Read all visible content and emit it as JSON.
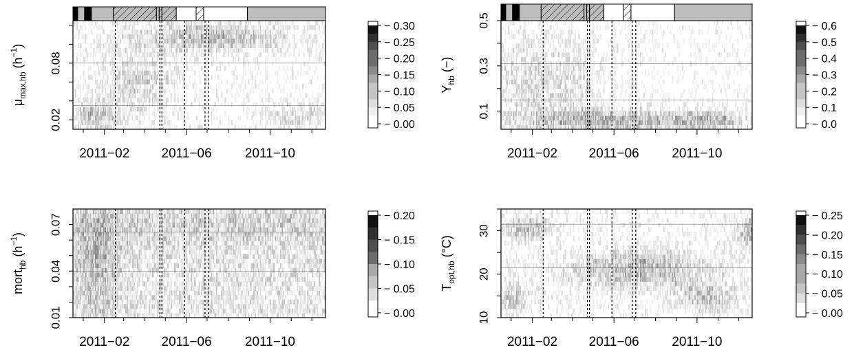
{
  "legend_levels": [
    "#ffffff",
    "#efefef",
    "#dddddd",
    "#c4c4c4",
    "#a8a8a8",
    "#8a8a8a",
    "#6c6c6c",
    "#4e4e4e",
    "#303030",
    "#111111"
  ],
  "chart_data": [
    {
      "type": "heatmap",
      "title": "",
      "xlabel": "",
      "ylabel_main": "μ",
      "ylabel_sub": "max,hb",
      "ylabel_unit": "(h",
      "ylabel_sup": "−1",
      "ylabel_close": ")",
      "x_ticks": [
        "2011−02",
        "2011−06",
        "2011−10"
      ],
      "x_tick_values": [
        31,
        151,
        273
      ],
      "x_minor_ticks": [
        0,
        59,
        90,
        120,
        181,
        212,
        243,
        304,
        334
      ],
      "xlim": [
        -15,
        354
      ],
      "ylim": [
        0.01,
        0.125
      ],
      "y_ticks": [
        0.02,
        0.08
      ],
      "y_minor_ticks": [
        0.02,
        0.04,
        0.06,
        0.08,
        0.1,
        0.12
      ],
      "gridlines": [
        0.035,
        0.08
      ],
      "legend_labels": [
        "0.30",
        "0.25",
        "0.20",
        "0.15",
        "0.10",
        "0.05",
        "0.00"
      ],
      "events_dashed": [
        47,
        112,
        115,
        148,
        178,
        183
      ],
      "condition_bar": true,
      "seed": 11
    },
    {
      "type": "heatmap",
      "title": "",
      "xlabel": "",
      "ylabel_main": "Y",
      "ylabel_sub": "hb",
      "ylabel_unit": "(−)",
      "ylabel_sup": "",
      "ylabel_close": "",
      "x_ticks": [
        "2011−02",
        "2011−06",
        "2011−10"
      ],
      "x_tick_values": [
        31,
        151,
        273
      ],
      "x_minor_ticks": [
        0,
        59,
        90,
        120,
        181,
        212,
        243,
        304,
        334
      ],
      "xlim": [
        -15,
        354
      ],
      "ylim": [
        0.02,
        0.5
      ],
      "y_ticks": [
        0.1,
        0.3,
        0.5
      ],
      "y_minor_ticks": [
        0.1,
        0.2,
        0.3,
        0.4,
        0.5
      ],
      "gridlines": [
        0.15,
        0.31
      ],
      "legend_labels": [
        "0.6",
        "0.5",
        "0.4",
        "0.3",
        "0.2",
        "0.1",
        "0.0"
      ],
      "events_dashed": [
        47,
        112,
        115,
        148,
        178,
        183
      ],
      "condition_bar": true,
      "seed": 23
    },
    {
      "type": "heatmap",
      "title": "",
      "xlabel": "",
      "ylabel_main": "mort",
      "ylabel_sub": "hb",
      "ylabel_unit": "(h",
      "ylabel_sup": "−1",
      "ylabel_close": ")",
      "x_ticks": [
        "2011−02",
        "2011−06",
        "2011−10"
      ],
      "x_tick_values": [
        31,
        151,
        273
      ],
      "x_minor_ticks": [
        0,
        59,
        90,
        120,
        181,
        212,
        243,
        304,
        334
      ],
      "xlim": [
        -15,
        354
      ],
      "ylim": [
        0.01,
        0.08
      ],
      "y_ticks": [
        0.01,
        0.04,
        0.07
      ],
      "y_minor_ticks": [
        0.01,
        0.02,
        0.03,
        0.04,
        0.05,
        0.06,
        0.07
      ],
      "gridlines": [
        0.04,
        0.065
      ],
      "legend_labels": [
        "0.20",
        "0.15",
        "0.10",
        "0.05",
        "0.00"
      ],
      "events_dashed": [
        47,
        112,
        115,
        148,
        178,
        183
      ],
      "condition_bar": false,
      "seed": 37
    },
    {
      "type": "heatmap",
      "title": "",
      "xlabel": "",
      "ylabel_main": "T",
      "ylabel_sub": "opt,hb",
      "ylabel_unit": "(°C)",
      "ylabel_sup": "",
      "ylabel_close": "",
      "x_ticks": [
        "2011−02",
        "2011−06",
        "2011−10"
      ],
      "x_tick_values": [
        31,
        151,
        273
      ],
      "x_minor_ticks": [
        0,
        59,
        90,
        120,
        181,
        212,
        243,
        304,
        334
      ],
      "xlim": [
        -15,
        354
      ],
      "ylim": [
        10,
        35
      ],
      "y_ticks": [
        10,
        20,
        30
      ],
      "y_minor_ticks": [
        10,
        15,
        20,
        25,
        30,
        35
      ],
      "gridlines": [
        21.5,
        31.5
      ],
      "legend_labels": [
        "0.25",
        "0.20",
        "0.15",
        "0.10",
        "0.05",
        "0.00"
      ],
      "events_dashed": [
        47,
        112,
        115,
        148,
        178,
        183
      ],
      "condition_bar": false,
      "seed": 53
    }
  ],
  "condition_segments": [
    {
      "x0": -15,
      "x1": -8,
      "fill": "#000000"
    },
    {
      "x0": -8,
      "x1": 2,
      "fill": "#bdbdbd"
    },
    {
      "x0": 2,
      "x1": 12,
      "fill": "#000000"
    },
    {
      "x0": 12,
      "x1": 44,
      "fill": "#bdbdbd"
    },
    {
      "x0": 44,
      "x1": 107,
      "fill": "hatch"
    },
    {
      "x0": 107,
      "x1": 111,
      "fill": "#bdbdbd"
    },
    {
      "x0": 111,
      "x1": 115,
      "fill": "hatch"
    },
    {
      "x0": 115,
      "x1": 136,
      "fill": "hatch"
    },
    {
      "x0": 136,
      "x1": 165,
      "fill": "#ffffff"
    },
    {
      "x0": 165,
      "x1": 176,
      "fill": "hatch"
    },
    {
      "x0": 176,
      "x1": 240,
      "fill": "#ffffff"
    },
    {
      "x0": 240,
      "x1": 354,
      "fill": "#bdbdbd"
    }
  ]
}
